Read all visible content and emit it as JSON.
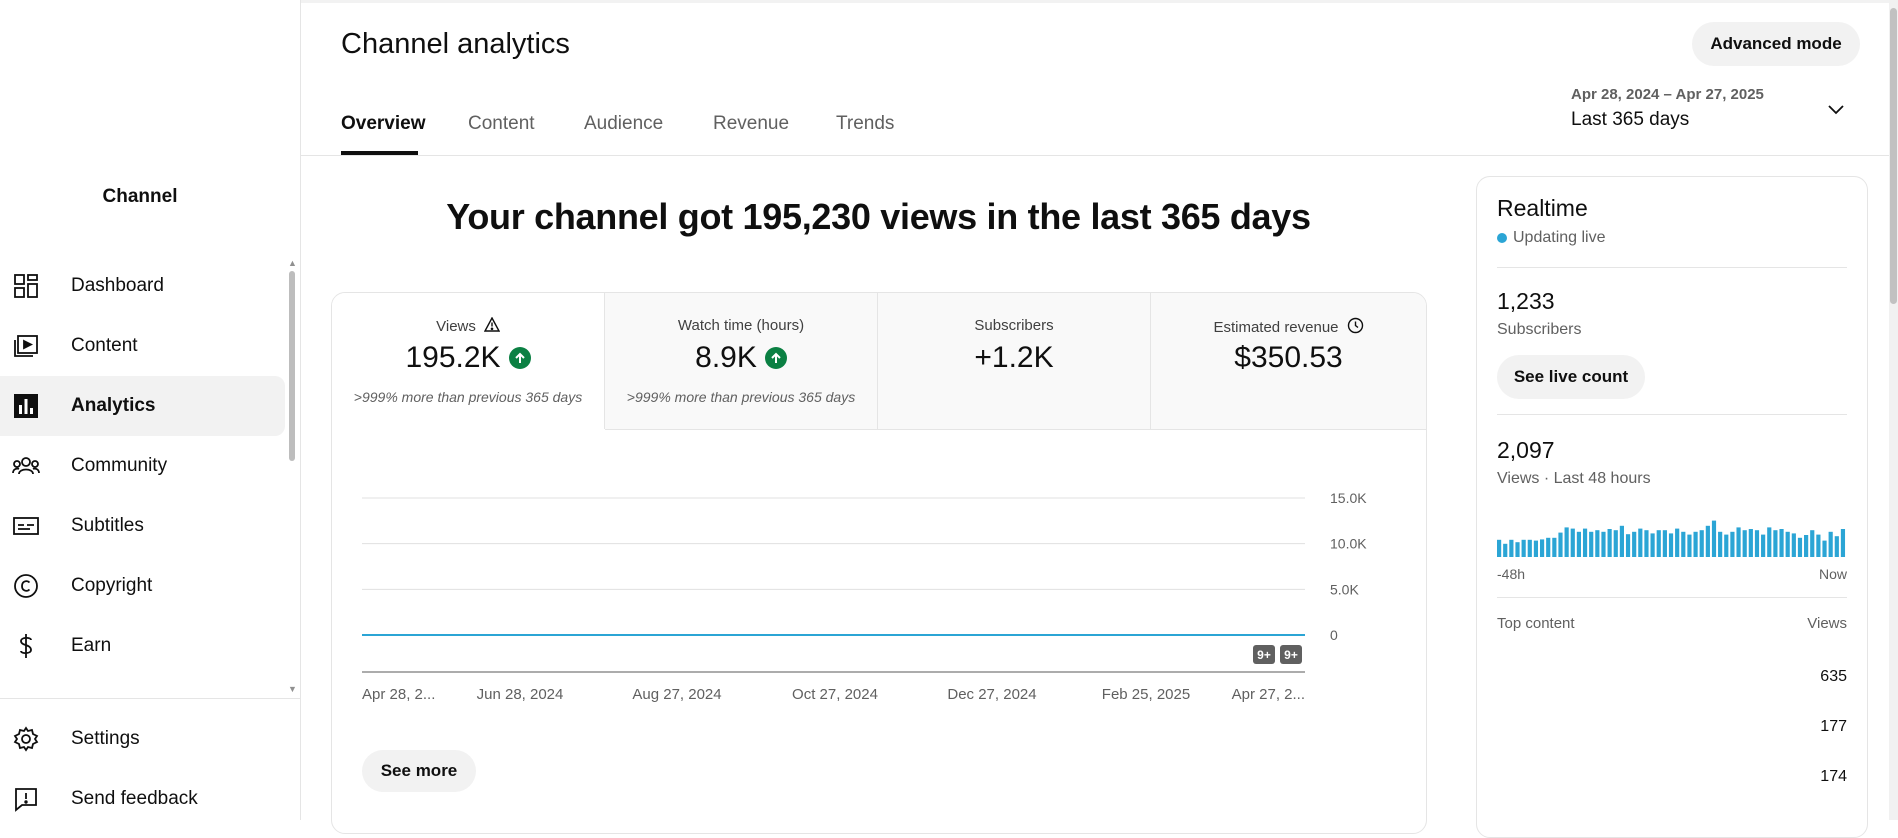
{
  "sidebar": {
    "channel_name": "Channel",
    "items": [
      {
        "label": "Dashboard",
        "icon": "dashboard-icon"
      },
      {
        "label": "Content",
        "icon": "content-icon"
      },
      {
        "label": "Analytics",
        "icon": "analytics-icon",
        "active": true
      },
      {
        "label": "Community",
        "icon": "community-icon"
      },
      {
        "label": "Subtitles",
        "icon": "subtitles-icon"
      },
      {
        "label": "Copyright",
        "icon": "copyright-icon"
      },
      {
        "label": "Earn",
        "icon": "earn-icon"
      }
    ],
    "bottom_items": [
      {
        "label": "Settings",
        "icon": "gear-icon"
      },
      {
        "label": "Send feedback",
        "icon": "feedback-icon"
      }
    ]
  },
  "header": {
    "title": "Channel analytics",
    "advanced_mode_label": "Advanced mode",
    "tabs": [
      "Overview",
      "Content",
      "Audience",
      "Revenue",
      "Trends"
    ],
    "active_tab": "Overview",
    "date_range": "Apr 28, 2024 – Apr 27, 2025",
    "date_preset": "Last 365 days"
  },
  "headline": "Your channel got 195,230 views in the last 365 days",
  "metrics": [
    {
      "label": "Views",
      "value": "195.2K",
      "note": ">999% more than previous 365 days",
      "trend": "up"
    },
    {
      "label": "Watch time (hours)",
      "value": "8.9K",
      "note": ">999% more than previous 365 days",
      "trend": "up"
    },
    {
      "label": "Subscribers",
      "value": "+1.2K",
      "note": ""
    },
    {
      "label": "Estimated revenue",
      "value": "$350.53",
      "note": ""
    }
  ],
  "chart_data": {
    "type": "line",
    "series": [
      {
        "values": [
          0,
          0,
          0,
          0,
          0,
          0,
          0,
          0,
          0,
          0,
          0,
          0,
          0,
          0,
          0,
          0,
          0,
          0,
          0,
          0,
          0,
          0,
          0,
          0,
          0,
          0,
          0,
          0,
          0,
          0,
          0,
          0,
          0,
          0,
          0,
          0,
          0,
          0,
          0,
          0,
          0,
          0,
          0,
          0,
          0,
          0,
          0,
          0,
          0,
          0,
          0,
          0,
          0,
          0,
          0,
          0,
          0,
          0,
          0,
          0,
          0,
          0,
          0,
          0,
          0,
          0,
          0,
          0,
          0,
          0,
          0,
          0,
          0,
          0,
          0,
          0,
          0,
          0,
          0,
          0,
          0,
          0,
          0,
          0,
          0,
          0,
          0,
          0,
          0,
          0,
          0,
          0,
          0,
          0,
          0,
          0,
          0,
          0,
          0,
          0,
          0,
          0,
          0,
          0,
          0,
          0,
          0,
          0,
          0,
          0,
          0,
          0,
          0,
          0,
          0,
          0,
          0,
          0,
          0,
          0,
          0,
          0,
          0,
          0,
          0,
          0,
          0,
          0,
          0,
          0,
          0,
          0,
          0,
          0,
          0,
          0,
          0,
          0,
          0,
          0,
          0,
          0,
          0,
          0,
          0,
          0,
          0,
          0,
          0,
          0,
          0,
          0,
          0,
          0,
          0,
          0,
          0,
          0,
          0,
          0,
          0,
          0,
          0,
          0,
          0,
          0,
          0,
          0,
          0,
          0,
          0,
          0,
          0,
          0,
          0,
          0,
          0,
          0,
          0,
          0,
          0,
          0,
          0,
          0,
          0,
          0,
          0,
          0,
          0,
          0,
          0,
          0,
          0,
          0,
          0,
          0,
          0,
          0,
          0,
          0,
          0,
          0,
          0,
          0,
          0,
          0,
          0,
          0,
          0,
          0,
          0,
          0,
          0,
          0,
          0,
          0,
          0,
          0,
          0,
          0,
          0,
          0,
          0,
          0,
          0,
          0,
          0,
          0,
          0,
          0,
          0,
          0,
          0,
          0,
          0,
          0,
          0,
          0,
          0,
          0,
          0,
          0,
          0,
          0,
          0,
          0,
          0,
          0,
          0,
          0,
          0,
          0,
          0,
          0,
          0,
          0,
          0,
          0,
          0,
          0,
          0,
          0,
          0,
          0,
          0,
          0,
          0,
          0,
          0,
          0,
          0,
          0,
          0,
          0,
          0,
          0,
          0,
          0,
          0,
          0,
          0,
          0,
          0,
          0,
          0,
          0,
          0,
          0,
          0,
          0,
          0,
          0,
          0,
          0,
          0,
          0,
          0,
          0,
          0,
          0,
          0,
          0,
          0,
          0,
          0,
          0,
          0,
          0,
          0,
          0,
          0,
          0,
          0,
          0,
          0,
          0,
          0,
          0,
          0,
          0,
          0,
          0,
          0,
          0,
          0,
          0,
          0,
          0,
          0,
          0,
          0,
          0,
          0,
          0,
          0,
          0,
          0,
          0,
          0,
          0,
          0,
          0,
          0,
          0,
          0,
          0,
          0,
          0,
          0,
          0,
          0,
          0,
          0,
          0,
          0,
          0,
          0,
          0,
          0,
          0,
          0,
          0,
          0,
          0,
          0,
          0,
          0
        ]
      }
    ],
    "x_ticks": [
      "Apr 28, 2...",
      "Jun 28, 2024",
      "Aug 27, 2024",
      "Oct 27, 2024",
      "Dec 27, 2024",
      "Feb 25, 2025",
      "Apr 27, 2..."
    ],
    "y_ticks": [
      "15.0K",
      "10.0K",
      "5.0K",
      "0"
    ],
    "ylim": [
      0,
      15000
    ],
    "markers": [
      "9+",
      "9+"
    ],
    "color": "#2ba5d5",
    "grid": true
  },
  "see_more_label": "See more",
  "realtime": {
    "title": "Realtime",
    "live_label": "Updating live",
    "subscribers_value": "1,233",
    "subscribers_label": "Subscribers",
    "live_count_label": "See live count",
    "views_value": "2,097",
    "views_label": "Views · Last 48 hours",
    "bars": [
      0.43,
      0.33,
      0.43,
      0.37,
      0.43,
      0.43,
      0.41,
      0.44,
      0.48,
      0.48,
      0.61,
      0.74,
      0.71,
      0.63,
      0.71,
      0.63,
      0.67,
      0.63,
      0.7,
      0.67,
      0.78,
      0.57,
      0.63,
      0.71,
      0.67,
      0.59,
      0.67,
      0.67,
      0.59,
      0.71,
      0.63,
      0.56,
      0.63,
      0.67,
      0.78,
      0.91,
      0.63,
      0.56,
      0.63,
      0.74,
      0.67,
      0.7,
      0.67,
      0.56,
      0.74,
      0.67,
      0.7,
      0.63,
      0.59,
      0.48,
      0.55,
      0.67,
      0.56,
      0.41,
      0.63,
      0.52,
      0.7
    ],
    "axis_left": "-48h",
    "axis_right": "Now",
    "top_content_label": "Top content",
    "views_col_label": "Views",
    "top_content": [
      "635",
      "177",
      "174"
    ]
  },
  "colors": {
    "accent": "#2ba5d5",
    "trend_up": "#0b8043"
  }
}
